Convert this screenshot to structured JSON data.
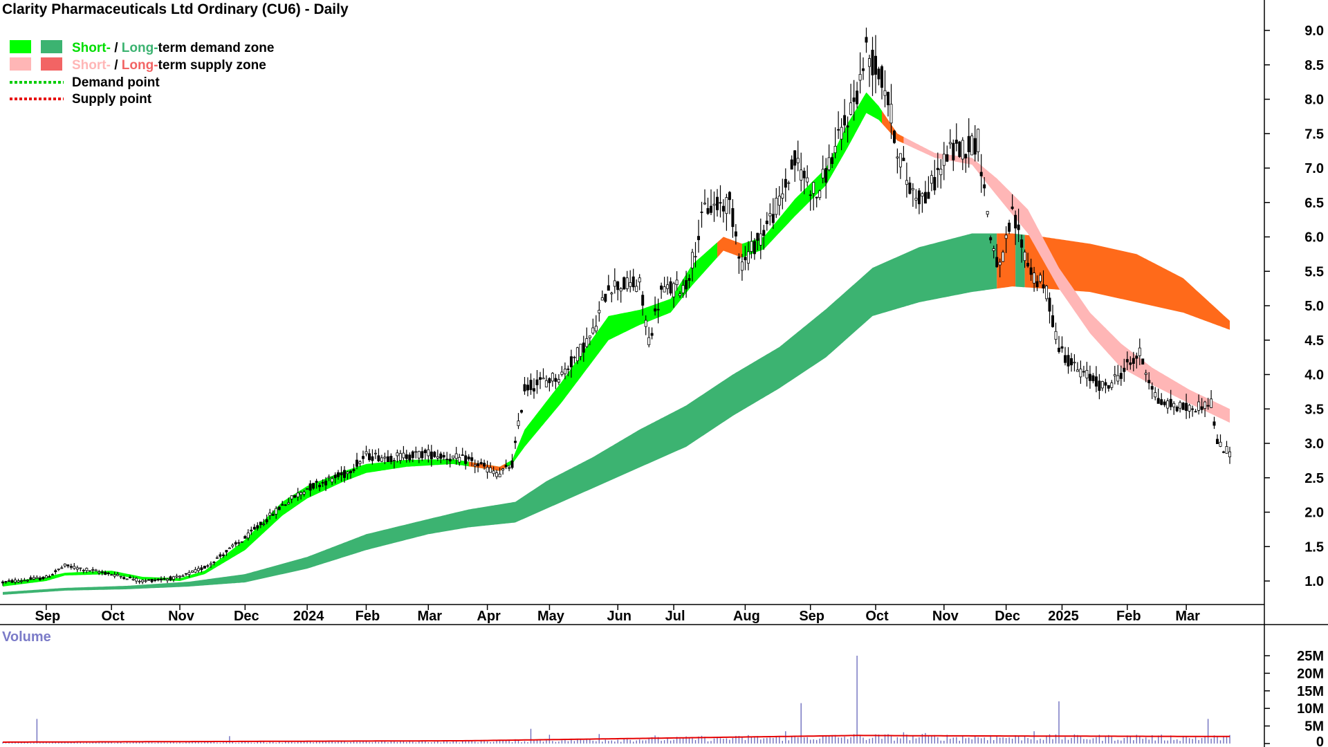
{
  "chart_data": {
    "type": "candlestick",
    "title": "Clarity Pharmaceuticals Ltd Ordinary (CU6) - Daily",
    "colors": {
      "short_demand": "#00ff00",
      "long_demand": "#3cb371",
      "short_supply": "#ffb6b6",
      "long_supply": "#ff6a1a",
      "demand_point": "#00cc00",
      "supply_point": "#e60000",
      "candle": "#000000",
      "volume_bar": "#6e6ebe",
      "volume_ma": "#e60000"
    },
    "legend": {
      "items": [
        {
          "short_text": "Short-",
          "sep": " / ",
          "long_text": "Long-",
          "rest": "term demand zone"
        },
        {
          "short_text": "Short-",
          "sep": " / ",
          "long_text": "Long-",
          "rest": "term supply zone"
        },
        {
          "text": "Demand point"
        },
        {
          "text": "Supply point"
        }
      ],
      "placement": "top-left"
    },
    "price_axis": {
      "ticks": [
        "1.0",
        "1.5",
        "2.0",
        "2.5",
        "3.0",
        "3.5",
        "4.0",
        "4.5",
        "5.0",
        "5.5",
        "6.0",
        "6.5",
        "7.0",
        "7.5",
        "8.0",
        "8.5",
        "9.0"
      ],
      "ylim": [
        0.65,
        9.25
      ]
    },
    "x_axis": {
      "ticks": [
        "Sep",
        "Oct",
        "Nov",
        "Dec",
        "2024",
        "Feb",
        "Mar",
        "Apr",
        "May",
        "Jun",
        "Jul",
        "Aug",
        "Sep",
        "Oct",
        "Nov",
        "Dec",
        "2025",
        "Feb",
        "Mar"
      ],
      "tick_index": [
        14,
        35,
        57,
        78,
        98,
        117,
        137,
        156,
        176,
        198,
        216,
        239,
        260,
        281,
        303,
        323,
        341,
        362,
        381
      ],
      "n_days": 392
    },
    "price_anchors": [
      [
        0,
        0.98
      ],
      [
        14,
        1.05
      ],
      [
        20,
        1.22
      ],
      [
        35,
        1.1
      ],
      [
        45,
        1.0
      ],
      [
        57,
        1.05
      ],
      [
        65,
        1.2
      ],
      [
        78,
        1.62
      ],
      [
        90,
        2.1
      ],
      [
        98,
        2.35
      ],
      [
        110,
        2.55
      ],
      [
        117,
        2.82
      ],
      [
        125,
        2.8
      ],
      [
        137,
        2.85
      ],
      [
        150,
        2.75
      ],
      [
        160,
        2.55
      ],
      [
        164,
        2.7
      ],
      [
        168,
        3.8
      ],
      [
        180,
        4.0
      ],
      [
        190,
        4.6
      ],
      [
        195,
        5.3
      ],
      [
        205,
        5.3
      ],
      [
        208,
        4.5
      ],
      [
        212,
        5.2
      ],
      [
        220,
        5.3
      ],
      [
        226,
        6.4
      ],
      [
        234,
        6.5
      ],
      [
        238,
        5.6
      ],
      [
        245,
        6.1
      ],
      [
        250,
        6.5
      ],
      [
        255,
        7.1
      ],
      [
        262,
        6.6
      ],
      [
        270,
        7.5
      ],
      [
        275,
        8.1
      ],
      [
        278,
        8.7
      ],
      [
        284,
        8.2
      ],
      [
        288,
        7.3
      ],
      [
        292,
        6.7
      ],
      [
        297,
        6.55
      ],
      [
        304,
        7.2
      ],
      [
        314,
        7.4
      ],
      [
        318,
        6.0
      ],
      [
        321,
        5.5
      ],
      [
        325,
        6.3
      ],
      [
        331,
        5.5
      ],
      [
        336,
        5.2
      ],
      [
        340,
        4.4
      ],
      [
        345,
        4.1
      ],
      [
        355,
        3.8
      ],
      [
        366,
        4.3
      ],
      [
        372,
        3.6
      ],
      [
        382,
        3.5
      ],
      [
        389,
        3.6
      ],
      [
        391,
        3.0
      ],
      [
        395,
        2.85
      ]
    ],
    "zones": {
      "short": [
        [
          0,
          0.92,
          0.98
        ],
        [
          14,
          1.0,
          1.06
        ],
        [
          20,
          1.08,
          1.12
        ],
        [
          35,
          1.1,
          1.15
        ],
        [
          45,
          1.02,
          1.06
        ],
        [
          57,
          1.0,
          1.04
        ],
        [
          65,
          1.1,
          1.15
        ],
        [
          78,
          1.45,
          1.6
        ],
        [
          90,
          1.95,
          2.15
        ],
        [
          98,
          2.2,
          2.38
        ],
        [
          110,
          2.45,
          2.6
        ],
        [
          117,
          2.57,
          2.7
        ],
        [
          130,
          2.66,
          2.76
        ],
        [
          145,
          2.7,
          2.77
        ],
        [
          160,
          2.6,
          2.66
        ],
        [
          164,
          2.7,
          2.76
        ],
        [
          168,
          2.95,
          3.2
        ],
        [
          180,
          3.6,
          3.9
        ],
        [
          195,
          4.5,
          4.85
        ],
        [
          205,
          4.72,
          4.94
        ],
        [
          215,
          4.9,
          5.1
        ],
        [
          222,
          5.3,
          5.6
        ],
        [
          232,
          5.8,
          6.0
        ],
        [
          238,
          5.7,
          5.9
        ],
        [
          245,
          5.82,
          6.0
        ],
        [
          255,
          6.3,
          6.55
        ],
        [
          265,
          6.75,
          7.0
        ],
        [
          272,
          7.3,
          7.65
        ],
        [
          278,
          7.8,
          8.1
        ],
        [
          282,
          7.7,
          7.9
        ],
        [
          288,
          7.4,
          7.5
        ],
        [
          300,
          7.15,
          7.22
        ],
        [
          312,
          7.05,
          7.15
        ],
        [
          320,
          6.6,
          6.85
        ],
        [
          330,
          6.05,
          6.4
        ],
        [
          340,
          5.25,
          5.55
        ],
        [
          350,
          4.6,
          4.9
        ],
        [
          360,
          4.1,
          4.45
        ],
        [
          370,
          3.85,
          4.1
        ],
        [
          382,
          3.58,
          3.78
        ],
        [
          395,
          3.3,
          3.5
        ]
      ],
      "long": [
        [
          0,
          0.8,
          0.84
        ],
        [
          20,
          0.86,
          0.9
        ],
        [
          40,
          0.88,
          0.93
        ],
        [
          60,
          0.92,
          0.99
        ],
        [
          78,
          0.98,
          1.1
        ],
        [
          98,
          1.18,
          1.35
        ],
        [
          117,
          1.45,
          1.68
        ],
        [
          137,
          1.68,
          1.9
        ],
        [
          150,
          1.78,
          2.04
        ],
        [
          165,
          1.85,
          2.15
        ],
        [
          175,
          2.05,
          2.45
        ],
        [
          190,
          2.35,
          2.8
        ],
        [
          205,
          2.65,
          3.2
        ],
        [
          220,
          2.95,
          3.55
        ],
        [
          235,
          3.4,
          4.0
        ],
        [
          250,
          3.8,
          4.4
        ],
        [
          265,
          4.25,
          4.95
        ],
        [
          280,
          4.85,
          5.55
        ],
        [
          295,
          5.05,
          5.85
        ],
        [
          312,
          5.2,
          6.05
        ],
        [
          325,
          5.28,
          6.05
        ],
        [
          335,
          5.25,
          6.0
        ],
        [
          350,
          5.2,
          5.9
        ],
        [
          365,
          5.05,
          5.75
        ],
        [
          380,
          4.9,
          5.4
        ],
        [
          395,
          4.65,
          4.78
        ]
      ],
      "segments": [
        {
          "from": 0,
          "to": 230,
          "type": "demand"
        },
        {
          "from": 230,
          "to": 238,
          "type": "supply"
        },
        {
          "from": 238,
          "to": 283,
          "type": "demand"
        },
        {
          "from": 283,
          "to": 395,
          "type": "supply"
        }
      ],
      "long_segments": [
        {
          "from": 0,
          "to": 320,
          "type": "demand"
        },
        {
          "from": 320,
          "to": 326,
          "type": "supply"
        },
        {
          "from": 326,
          "to": 329,
          "type": "demand"
        },
        {
          "from": 329,
          "to": 395,
          "type": "supply"
        }
      ]
    },
    "volume": {
      "label": "Volume",
      "ticks": [
        "0",
        "5M",
        "10M",
        "15M",
        "20M",
        "25M"
      ],
      "ylim": [
        0,
        26
      ],
      "base_level": 1.2,
      "spikes": [
        [
          11,
          7.0
        ],
        [
          73,
          2.1
        ],
        [
          170,
          4.2
        ],
        [
          176,
          2.5
        ],
        [
          192,
          2.7
        ],
        [
          210,
          2.3
        ],
        [
          225,
          2.2
        ],
        [
          240,
          2.4
        ],
        [
          252,
          3.5
        ],
        [
          257,
          11.5
        ],
        [
          275,
          25.0
        ],
        [
          290,
          3.2
        ],
        [
          297,
          3.0
        ],
        [
          318,
          2.4
        ],
        [
          332,
          3.5
        ],
        [
          340,
          12.0
        ],
        [
          365,
          2.5
        ],
        [
          388,
          7.0
        ]
      ],
      "ma_anchors": [
        [
          0,
          0.4
        ],
        [
          150,
          0.8
        ],
        [
          200,
          1.4
        ],
        [
          275,
          2.3
        ],
        [
          300,
          2.2
        ],
        [
          395,
          2.0
        ]
      ]
    }
  }
}
